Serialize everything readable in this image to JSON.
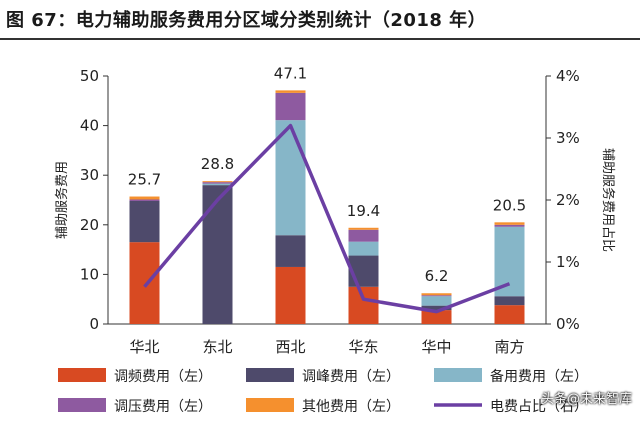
{
  "title": "图 67：电力辅助服务费用分区域分类别统计（2018 年）",
  "watermark": "头条@未来智库",
  "chart_data": {
    "type": "bar",
    "stacked": true,
    "categories": [
      "华北",
      "东北",
      "西北",
      "华东",
      "华中",
      "南方"
    ],
    "totals": [
      "25.7",
      "28.8",
      "47.1",
      "19.4",
      "6.2",
      "20.5"
    ],
    "series": [
      {
        "name": "调频费用（左）",
        "color": "#d84a22",
        "values": [
          16.5,
          0,
          11.5,
          7.5,
          2.8,
          3.8
        ]
      },
      {
        "name": "调峰费用（左）",
        "color": "#4e4a6b",
        "values": [
          8.3,
          28.0,
          6.4,
          6.3,
          0.9,
          1.8
        ]
      },
      {
        "name": "备用费用（左）",
        "color": "#86b6c8",
        "values": [
          0,
          0.3,
          23.2,
          2.8,
          1.9,
          14.0
        ]
      },
      {
        "name": "调压费用（左）",
        "color": "#8e5aa0",
        "values": [
          0.3,
          0.3,
          5.5,
          2.4,
          0.2,
          0.4
        ]
      },
      {
        "name": "其他费用（左）",
        "color": "#f5902e",
        "values": [
          0.6,
          0.2,
          0.5,
          0.4,
          0.4,
          0.5
        ]
      }
    ],
    "line": {
      "name": "电费占比（右）",
      "color": "#6b3fa3",
      "values": [
        0.6,
        2.0,
        3.2,
        0.4,
        0.2,
        0.65
      ]
    },
    "yleft": {
      "label": "辅助服务费用",
      "ticks": [
        "0",
        "10",
        "20",
        "30",
        "40",
        "50"
      ],
      "min": 0,
      "max": 50
    },
    "yright": {
      "label": "辅助服务费用占比",
      "ticks": [
        "0%",
        "1%",
        "2%",
        "3%",
        "4%"
      ],
      "min": 0,
      "max": 4
    },
    "legend_position": "bottom"
  }
}
